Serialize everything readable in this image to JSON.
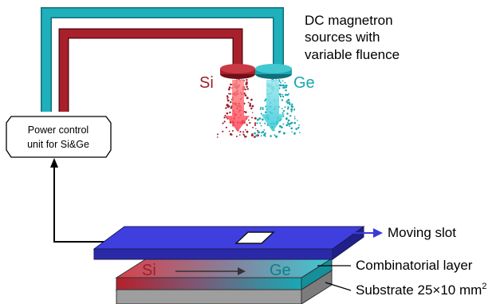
{
  "sources_label_line1": "DC magnetron",
  "sources_label_line2": "sources with",
  "sources_label_line3": "variable fluence",
  "si_label": "Si",
  "ge_label": "Ge",
  "power_unit_line1": "Power control",
  "power_unit_line2": "unit for Si&Ge",
  "moving_slot_label": "Moving slot",
  "layer_label": "Combinatorial layer",
  "substrate_label_main": "Substrate 25×10 mm",
  "substrate_label_sup": "2",
  "layer_si": "Si",
  "layer_ge": "Ge",
  "colors": {
    "si": "#a01e2a",
    "ge": "#1aa6b0",
    "slot": "#3a3ad8",
    "substrate": "#a9a9a9"
  }
}
